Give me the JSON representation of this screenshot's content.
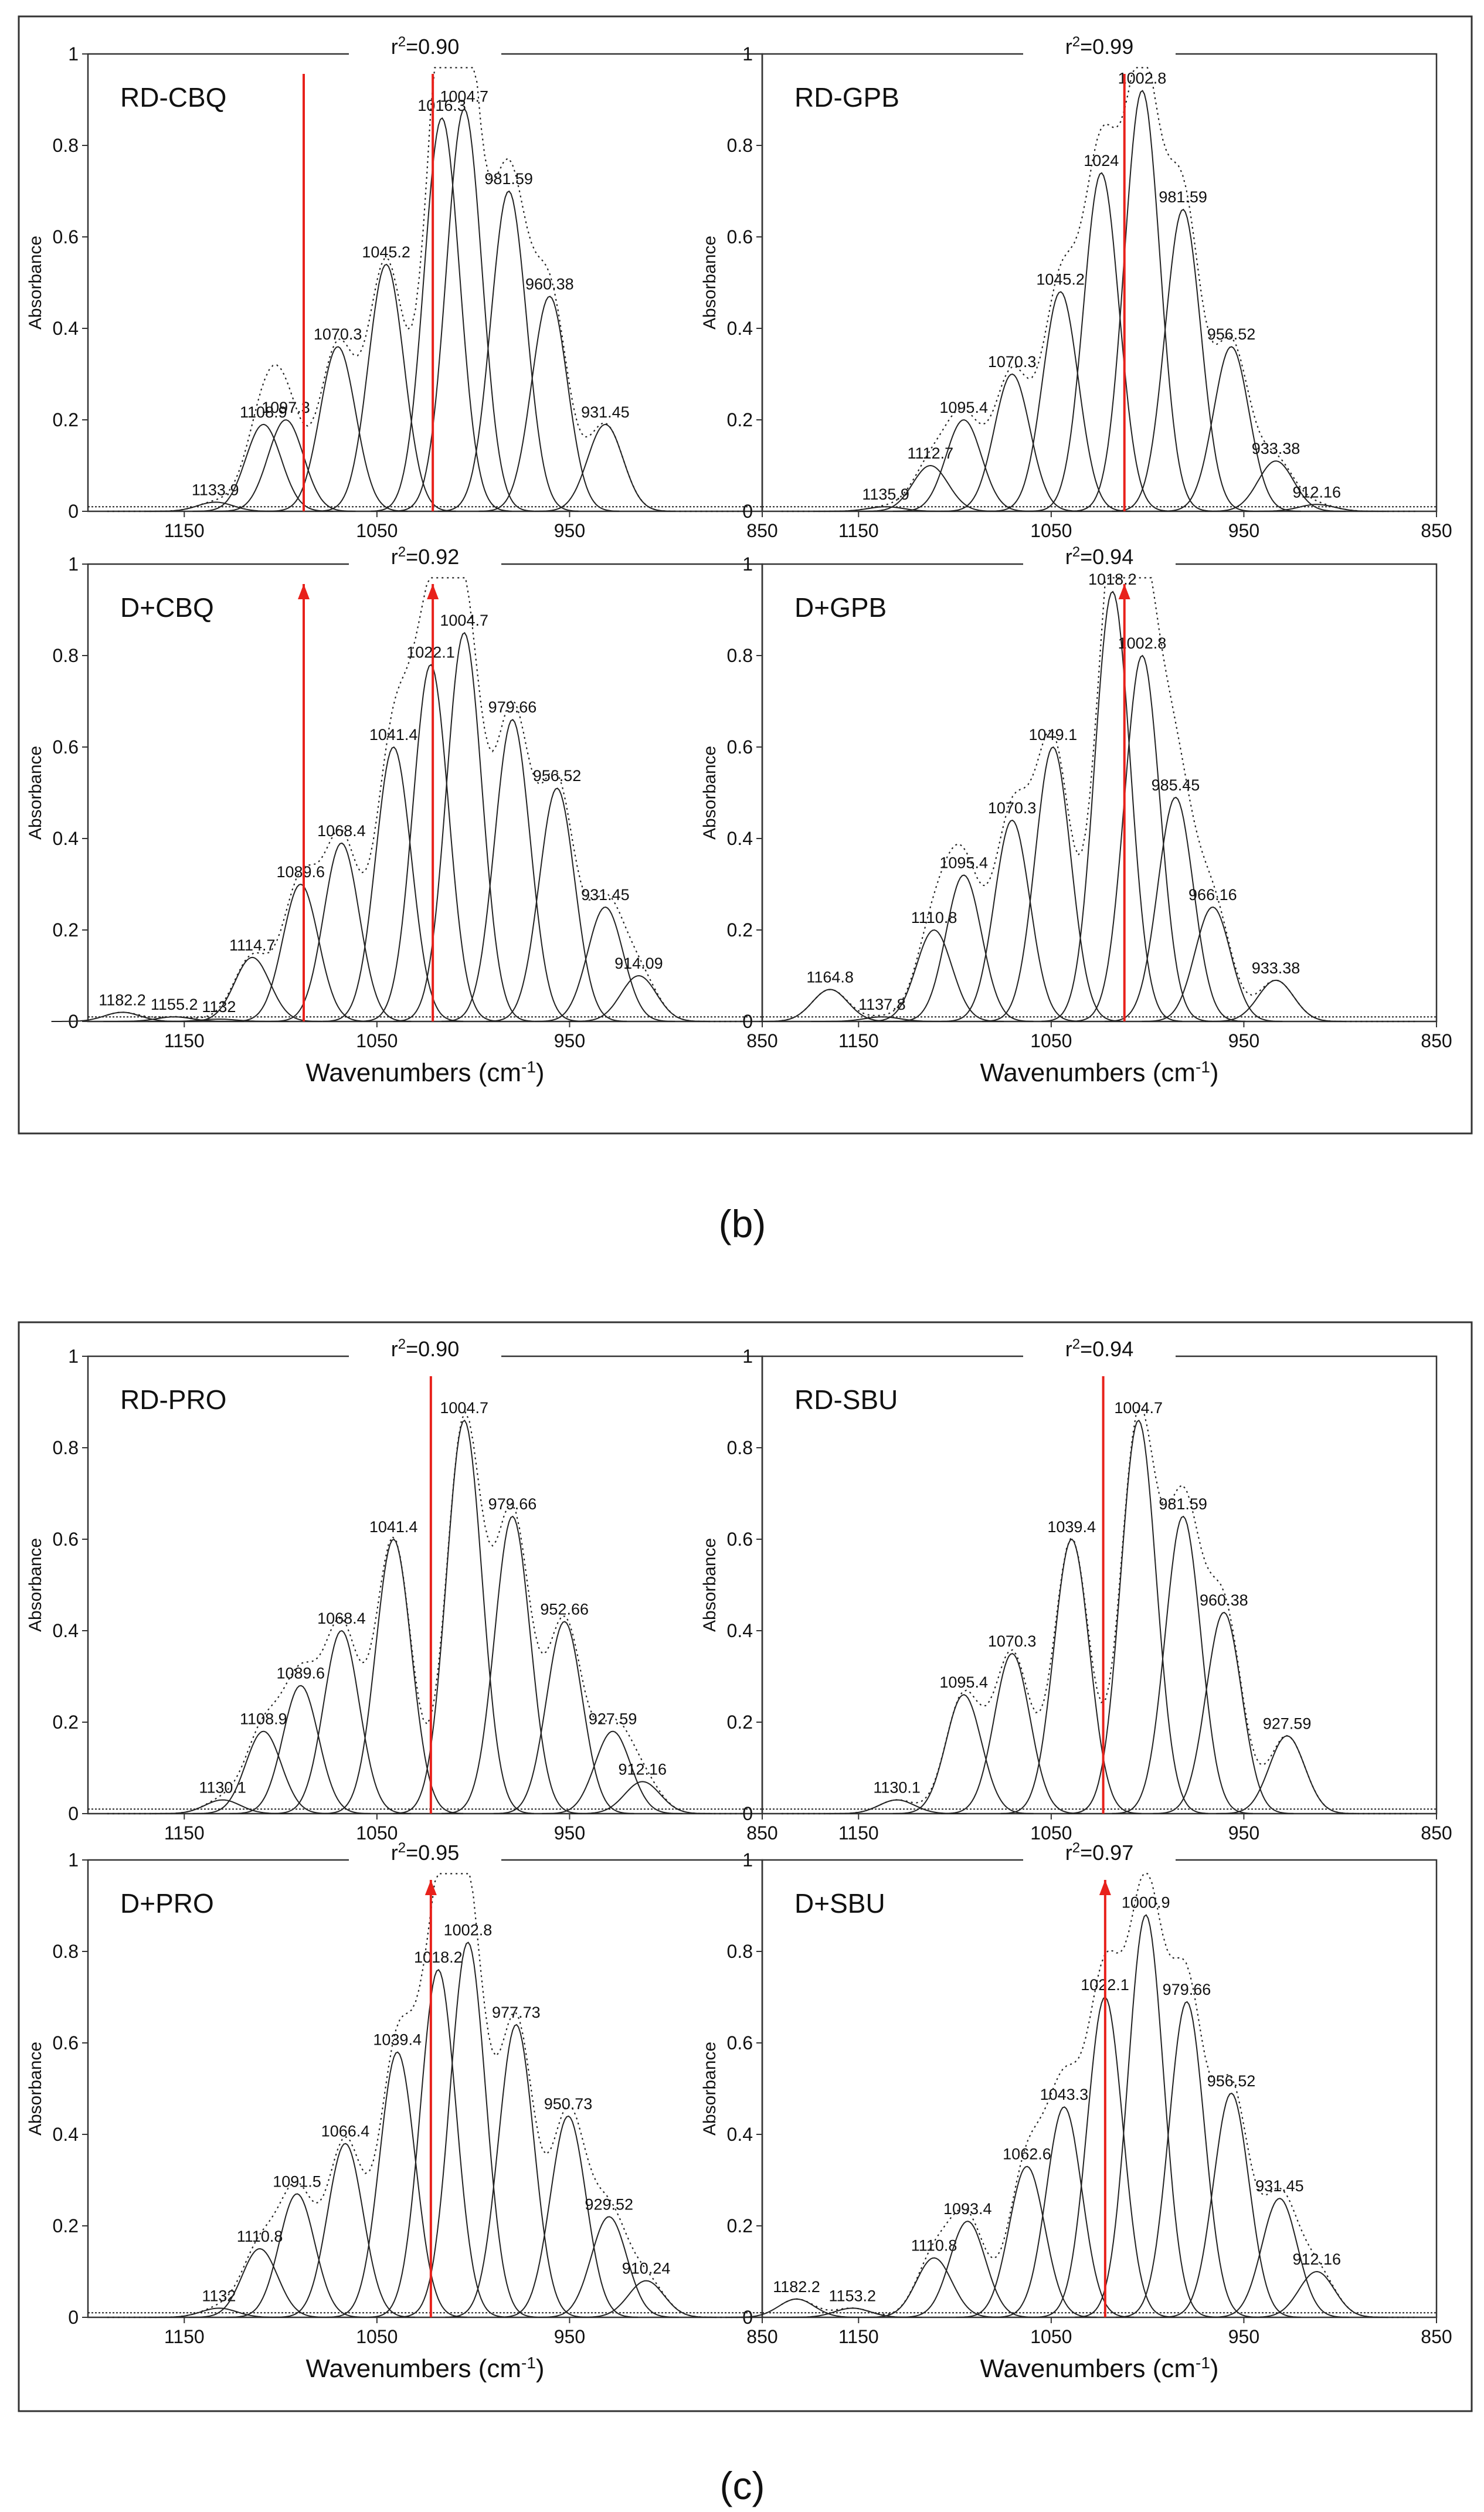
{
  "figure_labels": {
    "b": "(b)",
    "c": "(c)"
  },
  "common": {
    "ylabel": "Absorbance",
    "xlabel_main": "Wavenumbers (cm",
    "xlabel_sup": "-1",
    "xlabel_end": ")",
    "xticks": [
      "1150",
      "1050",
      "950",
      "850"
    ],
    "yticks": [
      "0",
      "0.2",
      "0.4",
      "0.6",
      "0.8",
      "1"
    ],
    "r2_prefix": "r",
    "r2_sup": "2"
  },
  "colors": {
    "frame": "#333333",
    "curve": "#222222",
    "marker": "#e8211b",
    "background": "#ffffff"
  },
  "chart_data": [
    {
      "type": "line",
      "panel": "b",
      "title": "RD-CBQ",
      "r2": "=0.90",
      "xlim": [
        1200,
        850
      ],
      "ylim": [
        0,
        1
      ],
      "xlabel": "",
      "ylabel": "Absorbance",
      "bands": [
        {
          "x": 1133.9,
          "label": "1133.9",
          "h": 0.02
        },
        {
          "x": 1108.9,
          "label": "1108.9",
          "h": 0.19
        },
        {
          "x": 1097.3,
          "label": "1097.3",
          "h": 0.2
        },
        {
          "x": 1070.3,
          "label": "1070.3",
          "h": 0.36
        },
        {
          "x": 1045.2,
          "label": "1045.2",
          "h": 0.54
        },
        {
          "x": 1016.3,
          "label": "1016.3",
          "h": 0.86
        },
        {
          "x": 1004.7,
          "label": "1004.7",
          "h": 0.88
        },
        {
          "x": 981.59,
          "label": "981.59",
          "h": 0.7
        },
        {
          "x": 960.38,
          "label": "960.38",
          "h": 0.47
        },
        {
          "x": 931.45,
          "label": "931.45",
          "h": 0.19
        }
      ],
      "markers": [
        {
          "x": 1088,
          "arrow": false
        },
        {
          "x": 1021,
          "arrow": false
        }
      ]
    },
    {
      "type": "line",
      "panel": "b",
      "title": "RD-GPB",
      "r2": "=0.99",
      "xlim": [
        1200,
        850
      ],
      "ylim": [
        0,
        1
      ],
      "xlabel": "",
      "ylabel": "Absorbance",
      "bands": [
        {
          "x": 1135.9,
          "label": "1135.9",
          "h": 0.01
        },
        {
          "x": 1112.7,
          "label": "1112.7",
          "h": 0.1
        },
        {
          "x": 1095.4,
          "label": "1095.4",
          "h": 0.2
        },
        {
          "x": 1070.3,
          "label": "1070.3",
          "h": 0.3
        },
        {
          "x": 1045.2,
          "label": "1045.2",
          "h": 0.48
        },
        {
          "x": 1024,
          "label": "1024",
          "h": 0.74
        },
        {
          "x": 1002.8,
          "label": "1002.8",
          "h": 0.92
        },
        {
          "x": 981.59,
          "label": "981.59",
          "h": 0.66
        },
        {
          "x": 956.52,
          "label": "956.52",
          "h": 0.36
        },
        {
          "x": 933.38,
          "label": "933.38",
          "h": 0.11
        },
        {
          "x": 912.16,
          "label": "912.16",
          "h": 0.015
        }
      ],
      "markers": [
        {
          "x": 1012,
          "arrow": false
        }
      ]
    },
    {
      "type": "line",
      "panel": "b",
      "title": "D+CBQ",
      "r2": "=0.92",
      "xlim": [
        1200,
        850
      ],
      "ylim": [
        0,
        1
      ],
      "xlabel": "Wavenumbers (cm-1)",
      "ylabel": "Absorbance",
      "bands": [
        {
          "x": 1182.2,
          "label": "1182.2",
          "h": 0.02
        },
        {
          "x": 1155.2,
          "label": "1155.2",
          "h": 0.01
        },
        {
          "x": 1132,
          "label": "1132",
          "h": 0.005
        },
        {
          "x": 1114.7,
          "label": "1114.7",
          "h": 0.14
        },
        {
          "x": 1089.6,
          "label": "1089.6",
          "h": 0.3
        },
        {
          "x": 1068.4,
          "label": "1068.4",
          "h": 0.39
        },
        {
          "x": 1041.4,
          "label": "1041.4",
          "h": 0.6
        },
        {
          "x": 1022.1,
          "label": "1022.1",
          "h": 0.78
        },
        {
          "x": 1004.7,
          "label": "1004.7",
          "h": 0.85
        },
        {
          "x": 979.66,
          "label": "979.66",
          "h": 0.66
        },
        {
          "x": 956.52,
          "label": "956.52",
          "h": 0.51
        },
        {
          "x": 931.45,
          "label": "931.45",
          "h": 0.25
        },
        {
          "x": 914.09,
          "label": "914.09",
          "h": 0.1
        }
      ],
      "markers": [
        {
          "x": 1088,
          "arrow": true
        },
        {
          "x": 1021,
          "arrow": true
        }
      ]
    },
    {
      "type": "line",
      "panel": "b",
      "title": "D+GPB",
      "r2": "=0.94",
      "xlim": [
        1200,
        850
      ],
      "ylim": [
        0,
        1
      ],
      "xlabel": "Wavenumbers (cm-1)",
      "ylabel": "Absorbance",
      "bands": [
        {
          "x": 1164.8,
          "label": "1164.8",
          "h": 0.07
        },
        {
          "x": 1137.8,
          "label": "1137.8",
          "h": 0.01
        },
        {
          "x": 1110.8,
          "label": "1110.8",
          "h": 0.2
        },
        {
          "x": 1095.4,
          "label": "1095.4",
          "h": 0.32
        },
        {
          "x": 1070.3,
          "label": "1070.3",
          "h": 0.44
        },
        {
          "x": 1049.1,
          "label": "1049.1",
          "h": 0.6
        },
        {
          "x": 1018.2,
          "label": "1018.2",
          "h": 0.94
        },
        {
          "x": 1002.8,
          "label": "1002.8",
          "h": 0.8
        },
        {
          "x": 985.45,
          "label": "985.45",
          "h": 0.49
        },
        {
          "x": 966.16,
          "label": "966.16",
          "h": 0.25
        },
        {
          "x": 933.38,
          "label": "933.38",
          "h": 0.09
        }
      ],
      "markers": [
        {
          "x": 1012,
          "arrow": true
        }
      ]
    },
    {
      "type": "line",
      "panel": "c",
      "title": "RD-PRO",
      "r2": "=0.90",
      "xlim": [
        1200,
        850
      ],
      "ylim": [
        0,
        1
      ],
      "xlabel": "",
      "ylabel": "Absorbance",
      "bands": [
        {
          "x": 1130.1,
          "label": "1130.1",
          "h": 0.03
        },
        {
          "x": 1108.9,
          "label": "1108.9",
          "h": 0.18
        },
        {
          "x": 1089.6,
          "label": "1089.6",
          "h": 0.28
        },
        {
          "x": 1068.4,
          "label": "1068.4",
          "h": 0.4
        },
        {
          "x": 1041.4,
          "label": "1041.4",
          "h": 0.6
        },
        {
          "x": 1004.7,
          "label": "1004.7",
          "h": 0.86
        },
        {
          "x": 979.66,
          "label": "979.66",
          "h": 0.65
        },
        {
          "x": 952.66,
          "label": "952.66",
          "h": 0.42
        },
        {
          "x": 927.59,
          "label": "927.59",
          "h": 0.18
        },
        {
          "x": 912.16,
          "label": "912.16",
          "h": 0.07
        }
      ],
      "markers": [
        {
          "x": 1022,
          "arrow": false
        }
      ]
    },
    {
      "type": "line",
      "panel": "c",
      "title": "RD-SBU",
      "r2": "=0.94",
      "xlim": [
        1200,
        850
      ],
      "ylim": [
        0,
        1
      ],
      "xlabel": "",
      "ylabel": "Absorbance",
      "bands": [
        {
          "x": 1130.1,
          "label": "1130.1",
          "h": 0.03
        },
        {
          "x": 1095.4,
          "label": "1095.4",
          "h": 0.26
        },
        {
          "x": 1070.3,
          "label": "1070.3",
          "h": 0.35
        },
        {
          "x": 1039.4,
          "label": "1039.4",
          "h": 0.6
        },
        {
          "x": 1004.7,
          "label": "1004.7",
          "h": 0.86
        },
        {
          "x": 981.59,
          "label": "981.59",
          "h": 0.65
        },
        {
          "x": 960.38,
          "label": "960.38",
          "h": 0.44
        },
        {
          "x": 927.59,
          "label": "927.59",
          "h": 0.17
        }
      ],
      "markers": [
        {
          "x": 1023,
          "arrow": false
        }
      ]
    },
    {
      "type": "line",
      "panel": "c",
      "title": "D+PRO",
      "r2": "=0.95",
      "xlim": [
        1200,
        850
      ],
      "ylim": [
        0,
        1
      ],
      "xlabel": "Wavenumbers (cm-1)",
      "ylabel": "Absorbance",
      "bands": [
        {
          "x": 1132,
          "label": "1132",
          "h": 0.02
        },
        {
          "x": 1110.8,
          "label": "1110.8",
          "h": 0.15
        },
        {
          "x": 1091.5,
          "label": "1091.5",
          "h": 0.27
        },
        {
          "x": 1066.4,
          "label": "1066.4",
          "h": 0.38
        },
        {
          "x": 1039.4,
          "label": "1039.4",
          "h": 0.58
        },
        {
          "x": 1018.2,
          "label": "1018.2",
          "h": 0.76
        },
        {
          "x": 1002.8,
          "label": "1002.8",
          "h": 0.82
        },
        {
          "x": 977.73,
          "label": "977.73",
          "h": 0.64
        },
        {
          "x": 950.73,
          "label": "950.73",
          "h": 0.44
        },
        {
          "x": 929.52,
          "label": "929.52",
          "h": 0.22
        },
        {
          "x": 910.24,
          "label": "910.24",
          "h": 0.08
        }
      ],
      "markers": [
        {
          "x": 1022,
          "arrow": true
        }
      ]
    },
    {
      "type": "line",
      "panel": "c",
      "title": "D+SBU",
      "r2": "=0.97",
      "xlim": [
        1200,
        850
      ],
      "ylim": [
        0,
        1
      ],
      "xlabel": "Wavenumbers (cm-1)",
      "ylabel": "Absorbance",
      "bands": [
        {
          "x": 1182.2,
          "label": "1182.2",
          "h": 0.04
        },
        {
          "x": 1153.2,
          "label": "1153.2",
          "h": 0.02
        },
        {
          "x": 1110.8,
          "label": "1110.8",
          "h": 0.13
        },
        {
          "x": 1093.4,
          "label": "1093.4",
          "h": 0.21
        },
        {
          "x": 1062.6,
          "label": "1062.6",
          "h": 0.33
        },
        {
          "x": 1043.3,
          "label": "1043.3",
          "h": 0.46
        },
        {
          "x": 1022.1,
          "label": "1022.1",
          "h": 0.7
        },
        {
          "x": 1000.9,
          "label": "1000.9",
          "h": 0.88
        },
        {
          "x": 979.66,
          "label": "979.66",
          "h": 0.69
        },
        {
          "x": 956.52,
          "label": "956.52",
          "h": 0.49
        },
        {
          "x": 931.45,
          "label": "931.45",
          "h": 0.26
        },
        {
          "x": 912.16,
          "label": "912.16",
          "h": 0.1
        }
      ],
      "markers": [
        {
          "x": 1022,
          "arrow": true
        }
      ]
    }
  ]
}
